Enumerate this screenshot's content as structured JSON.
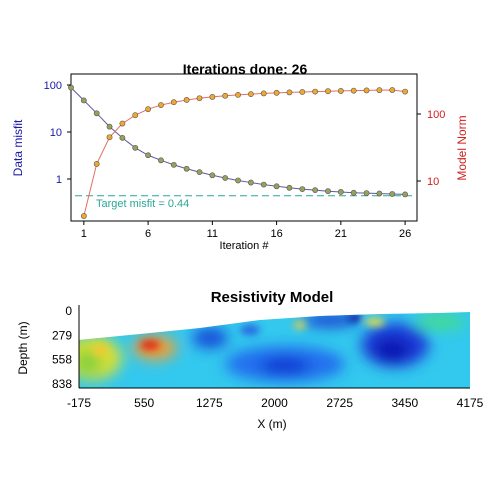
{
  "colors": {
    "misfit_axis": "#1a1aa8",
    "norm_axis": "#d02020",
    "target_line": "#2ba59a",
    "misfit_marker": "#9aa05a",
    "norm_marker": "#f0a830",
    "misfit_line": "#5a5aa0",
    "norm_line": "#e07060"
  },
  "chart_data": [
    {
      "type": "line",
      "title": "Iterations done: 26",
      "xlabel": "Iteration #",
      "ylabel_left": "Data misfit",
      "ylabel_right": "Model Norm",
      "x_ticks": [
        "1",
        "6",
        "11",
        "16",
        "21",
        "26"
      ],
      "y_left_ticks": [
        "1",
        "10",
        "100"
      ],
      "y_right_ticks": [
        "10",
        "100"
      ],
      "y_left_scale": "log",
      "y_right_scale": "log",
      "x": [
        0,
        1,
        2,
        3,
        4,
        5,
        6,
        7,
        8,
        9,
        10,
        11,
        12,
        13,
        14,
        15,
        16,
        17,
        18,
        19,
        20,
        21,
        22,
        23,
        24,
        25,
        26
      ],
      "series": [
        {
          "axis": "left",
          "values": [
            88,
            47,
            25,
            13,
            7.5,
            4.6,
            3.2,
            2.5,
            2.0,
            1.65,
            1.4,
            1.2,
            1.05,
            0.93,
            0.84,
            0.76,
            0.7,
            0.65,
            0.61,
            0.58,
            0.55,
            0.53,
            0.51,
            0.5,
            0.49,
            0.48,
            0.47
          ]
        },
        {
          "axis": "right",
          "values": [
            null,
            3,
            18,
            45,
            72,
            96,
            118,
            136,
            150,
            162,
            172,
            180,
            187,
            193,
            198,
            203,
            207,
            210,
            213,
            216,
            219,
            221,
            223,
            225,
            227,
            228,
            216
          ]
        }
      ],
      "annotation": "Target misfit = 0.44",
      "target_misfit": 0.44
    },
    {
      "type": "heatmap",
      "title": "Resistivity Model",
      "xlabel": "X (m)",
      "ylabel": "Depth (m)",
      "x_ticks": [
        "-175",
        "550",
        "1275",
        "2000",
        "2725",
        "3450",
        "4175"
      ],
      "y_ticks": [
        "0",
        "279",
        "558",
        "838"
      ],
      "xlim": [
        -175,
        4175
      ],
      "ylim": [
        0,
        838
      ]
    }
  ]
}
